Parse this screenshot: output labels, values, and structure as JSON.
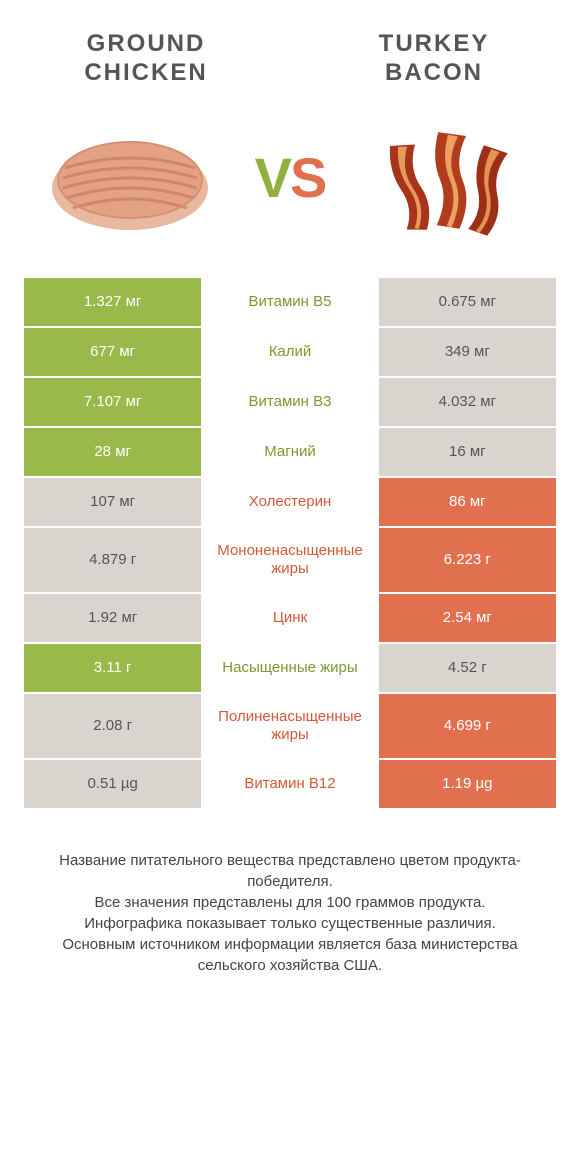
{
  "header": {
    "left_title": "GROUND\nCHICKEN",
    "right_title": "TURKEY\nBACON",
    "vs_v": "V",
    "vs_s": "S"
  },
  "colors": {
    "green": "#99b94b",
    "orange": "#e1704f",
    "grey": "#d9d5ce",
    "green_text": "#7a9a2f",
    "orange_text": "#d45a36",
    "white": "#ffffff"
  },
  "rows": [
    {
      "left": "1.327 мг",
      "mid": "Витамин B5",
      "right": "0.675 мг",
      "winner": "left"
    },
    {
      "left": "677 мг",
      "mid": "Калий",
      "right": "349 мг",
      "winner": "left"
    },
    {
      "left": "7.107 мг",
      "mid": "Витамин B3",
      "right": "4.032 мг",
      "winner": "left"
    },
    {
      "left": "28 мг",
      "mid": "Магний",
      "right": "16 мг",
      "winner": "left"
    },
    {
      "left": "107 мг",
      "mid": "Холестерин",
      "right": "86 мг",
      "winner": "right"
    },
    {
      "left": "4.879 г",
      "mid": "Мононенасыщенные жиры",
      "right": "6.223 г",
      "winner": "right"
    },
    {
      "left": "1.92 мг",
      "mid": "Цинк",
      "right": "2.54 мг",
      "winner": "right"
    },
    {
      "left": "3.11 г",
      "mid": "Насыщенные жиры",
      "right": "4.52 г",
      "winner": "left"
    },
    {
      "left": "2.08 г",
      "mid": "Полиненасыщенные жиры",
      "right": "4.699 г",
      "winner": "right"
    },
    {
      "left": "0.51 µg",
      "mid": "Витамин B12",
      "right": "1.19 µg",
      "winner": "right"
    }
  ],
  "footnote": {
    "l1": "Название питательного вещества представлено цветом продукта-победителя.",
    "l2": "Все значения представлены для 100 граммов продукта.",
    "l3": "Инфографика показывает только существенные различия.",
    "l4": "Основным источником информации является база министерства сельского хозяйства США."
  }
}
